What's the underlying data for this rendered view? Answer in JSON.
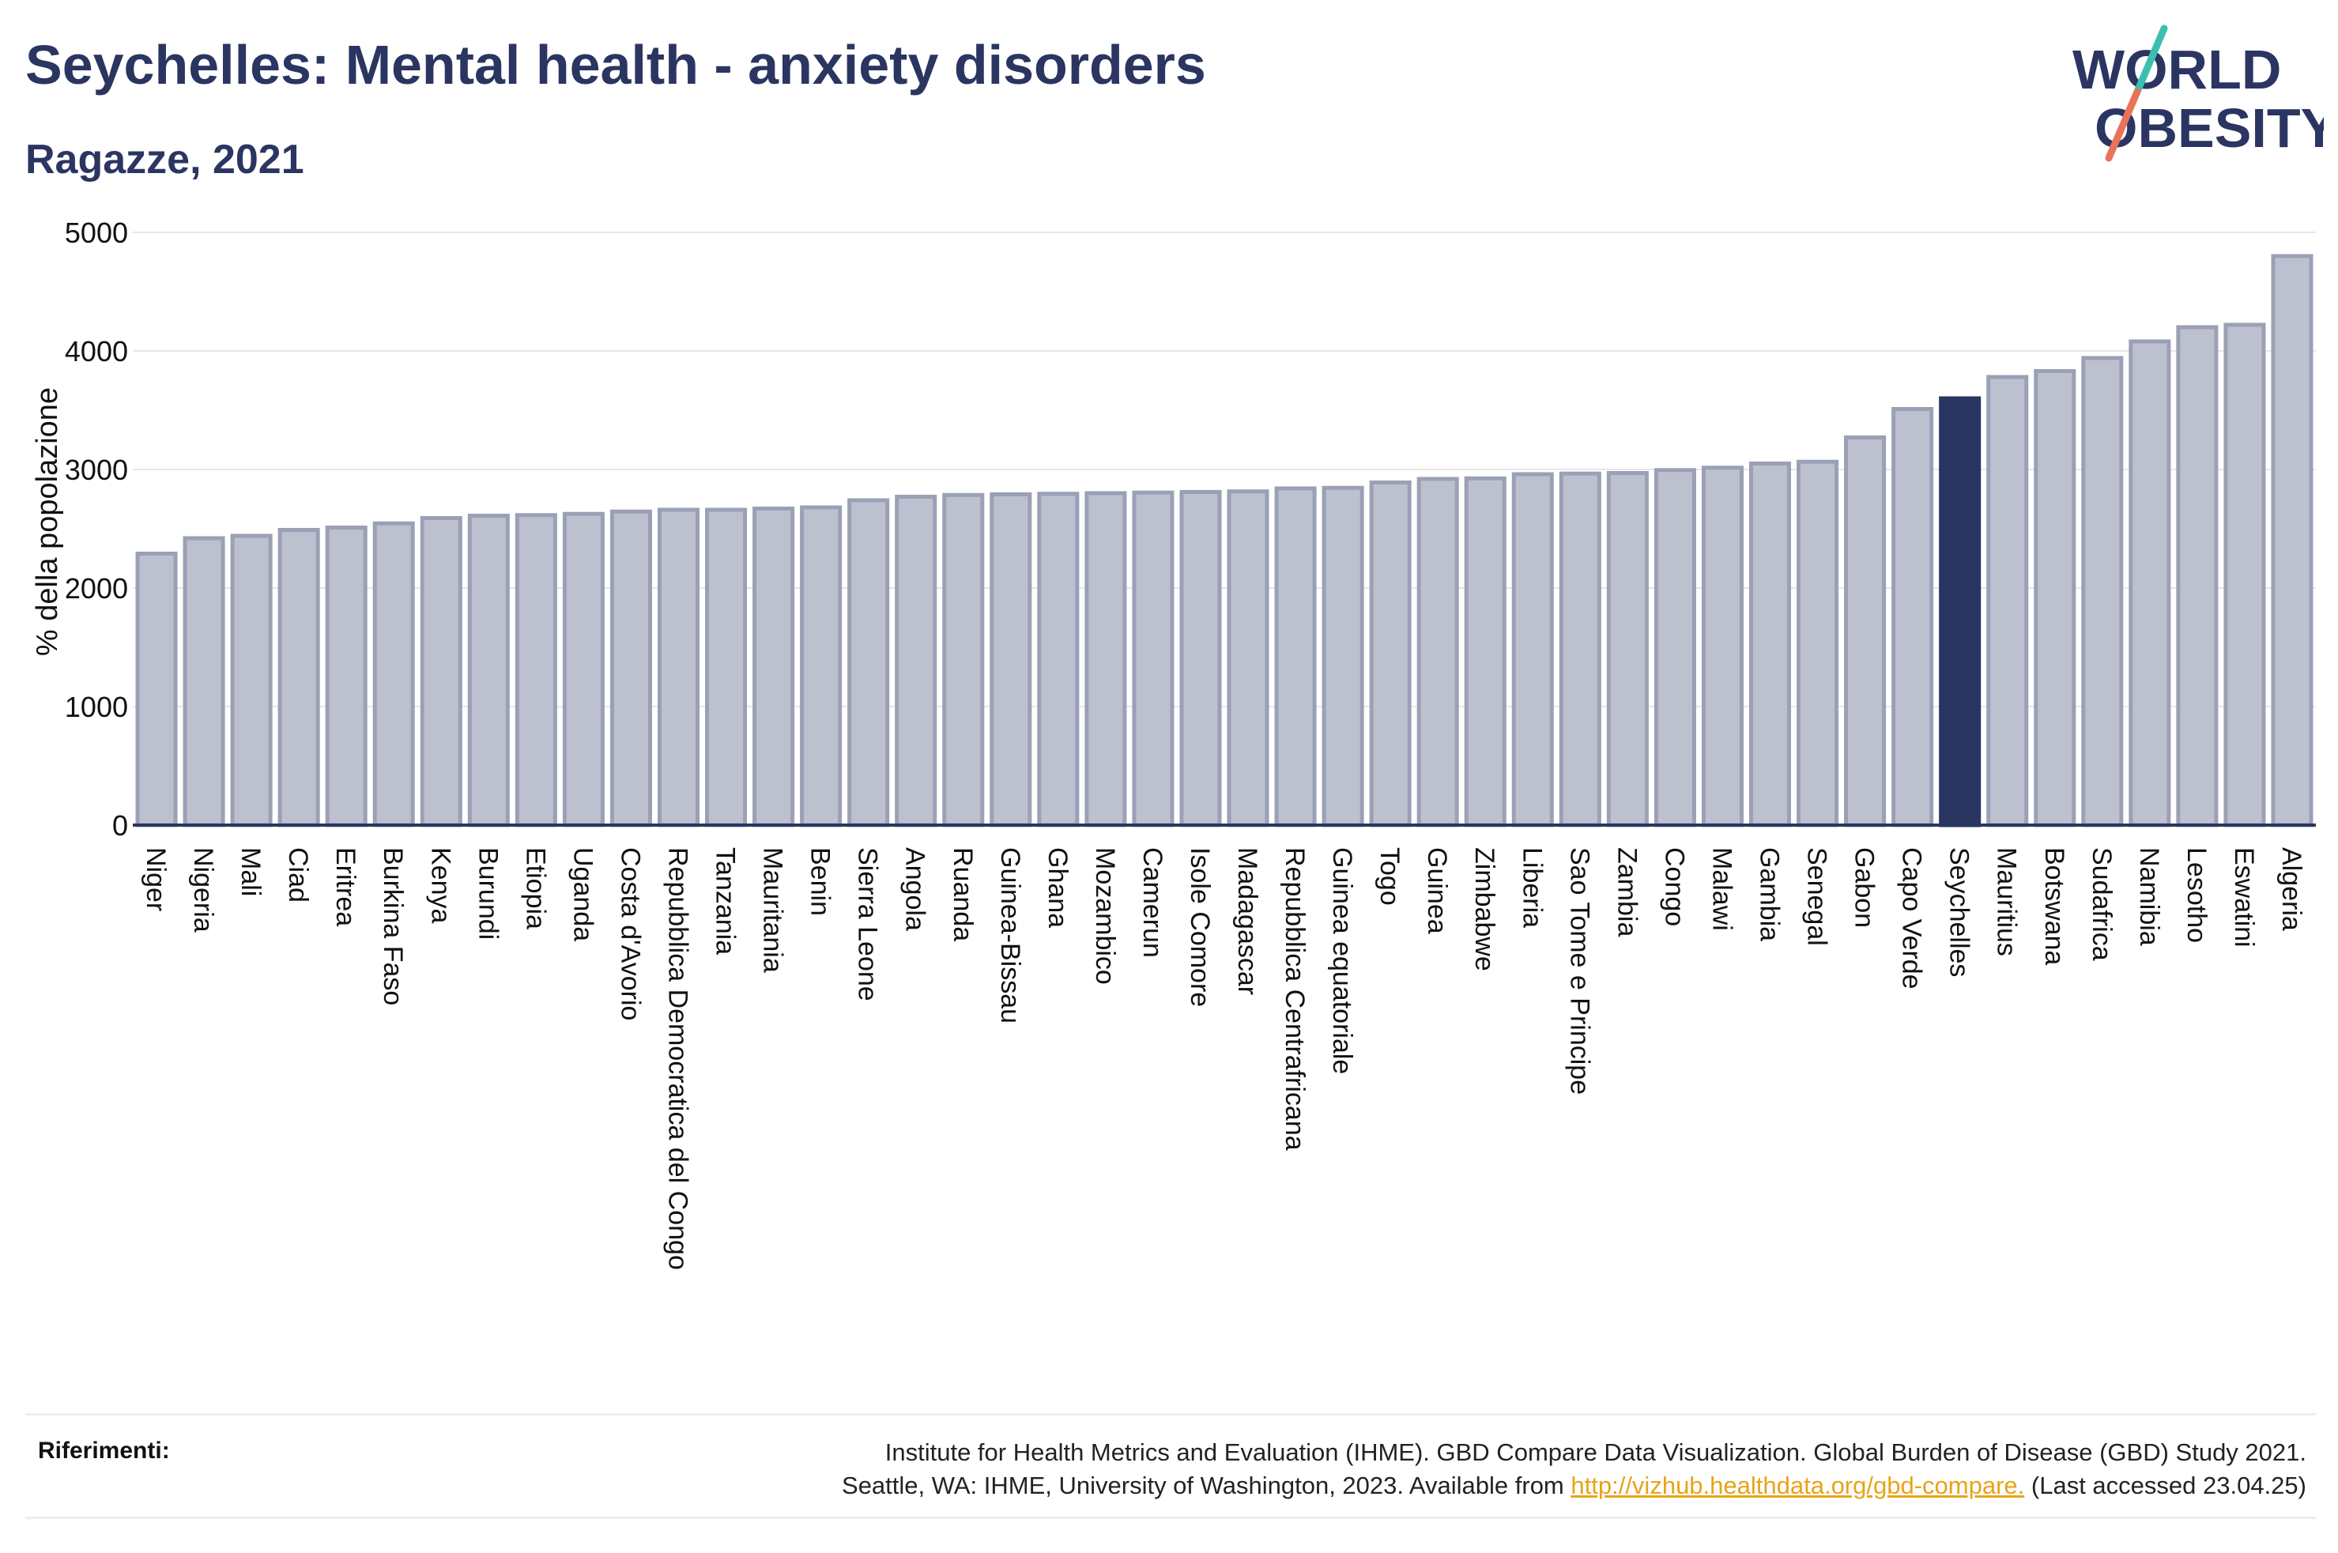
{
  "header": {
    "title": "Seychelles: Mental health - anxiety disorders",
    "subtitle": "Ragazze, 2021"
  },
  "logo": {
    "line1": "WORLD",
    "line2": "OBESITY",
    "icon": "world-obesity-logo"
  },
  "colors": {
    "highlight": "#2b3561",
    "bar_fill": "#bdc1cf",
    "bar_stroke": "#9aa0b5",
    "title": "#2b3561",
    "link": "#e8a317"
  },
  "chart_data": {
    "type": "bar",
    "ylabel": "% della popolazione",
    "xlabel": "",
    "ylim": [
      0,
      5000
    ],
    "yticks": [
      0,
      1000,
      2000,
      3000,
      4000,
      5000
    ],
    "grid": true,
    "highlight": "Seychelles",
    "categories": [
      "Niger",
      "Nigeria",
      "Mali",
      "Ciad",
      "Eritrea",
      "Burkina Faso",
      "Kenya",
      "Burundi",
      "Etiopia",
      "Uganda",
      "Costa d'Avorio",
      "Repubblica Democratica del Congo",
      "Tanzania",
      "Mauritania",
      "Benin",
      "Sierra Leone",
      "Angola",
      "Ruanda",
      "Guinea-Bissau",
      "Ghana",
      "Mozambico",
      "Camerun",
      "Isole Comore",
      "Madagascar",
      "Repubblica Centrafricana",
      "Guinea equatoriale",
      "Togo",
      "Guinea",
      "Zimbabwe",
      "Liberia",
      "Sao Tome e Principe",
      "Zambia",
      "Congo",
      "Malawi",
      "Gambia",
      "Senegal",
      "Gabon",
      "Capo Verde",
      "Seychelles",
      "Mauritius",
      "Botswana",
      "Sudafrica",
      "Namibia",
      "Lesotho",
      "Eswatini",
      "Algeria"
    ],
    "values": [
      2290,
      2420,
      2440,
      2490,
      2510,
      2545,
      2590,
      2610,
      2615,
      2625,
      2645,
      2660,
      2660,
      2670,
      2680,
      2740,
      2770,
      2785,
      2790,
      2795,
      2800,
      2805,
      2810,
      2815,
      2840,
      2845,
      2890,
      2920,
      2925,
      2960,
      2965,
      2970,
      2995,
      3015,
      3050,
      3065,
      3270,
      3510,
      3600,
      3780,
      3830,
      3940,
      4080,
      4200,
      4220,
      4800
    ]
  },
  "footer": {
    "label": "Riferimenti:",
    "line1": "Institute for Health Metrics and Evaluation (IHME). GBD Compare Data Visualization. Global Burden of Disease (GBD) Study 2021.",
    "line2_prefix": "Seattle, WA: IHME, University of Washington, 2023. Available from",
    "link": "http://vizhub.healthdata.org/gbd-compare.",
    "line2_suffix": "(Last accessed 23.04.25)"
  }
}
